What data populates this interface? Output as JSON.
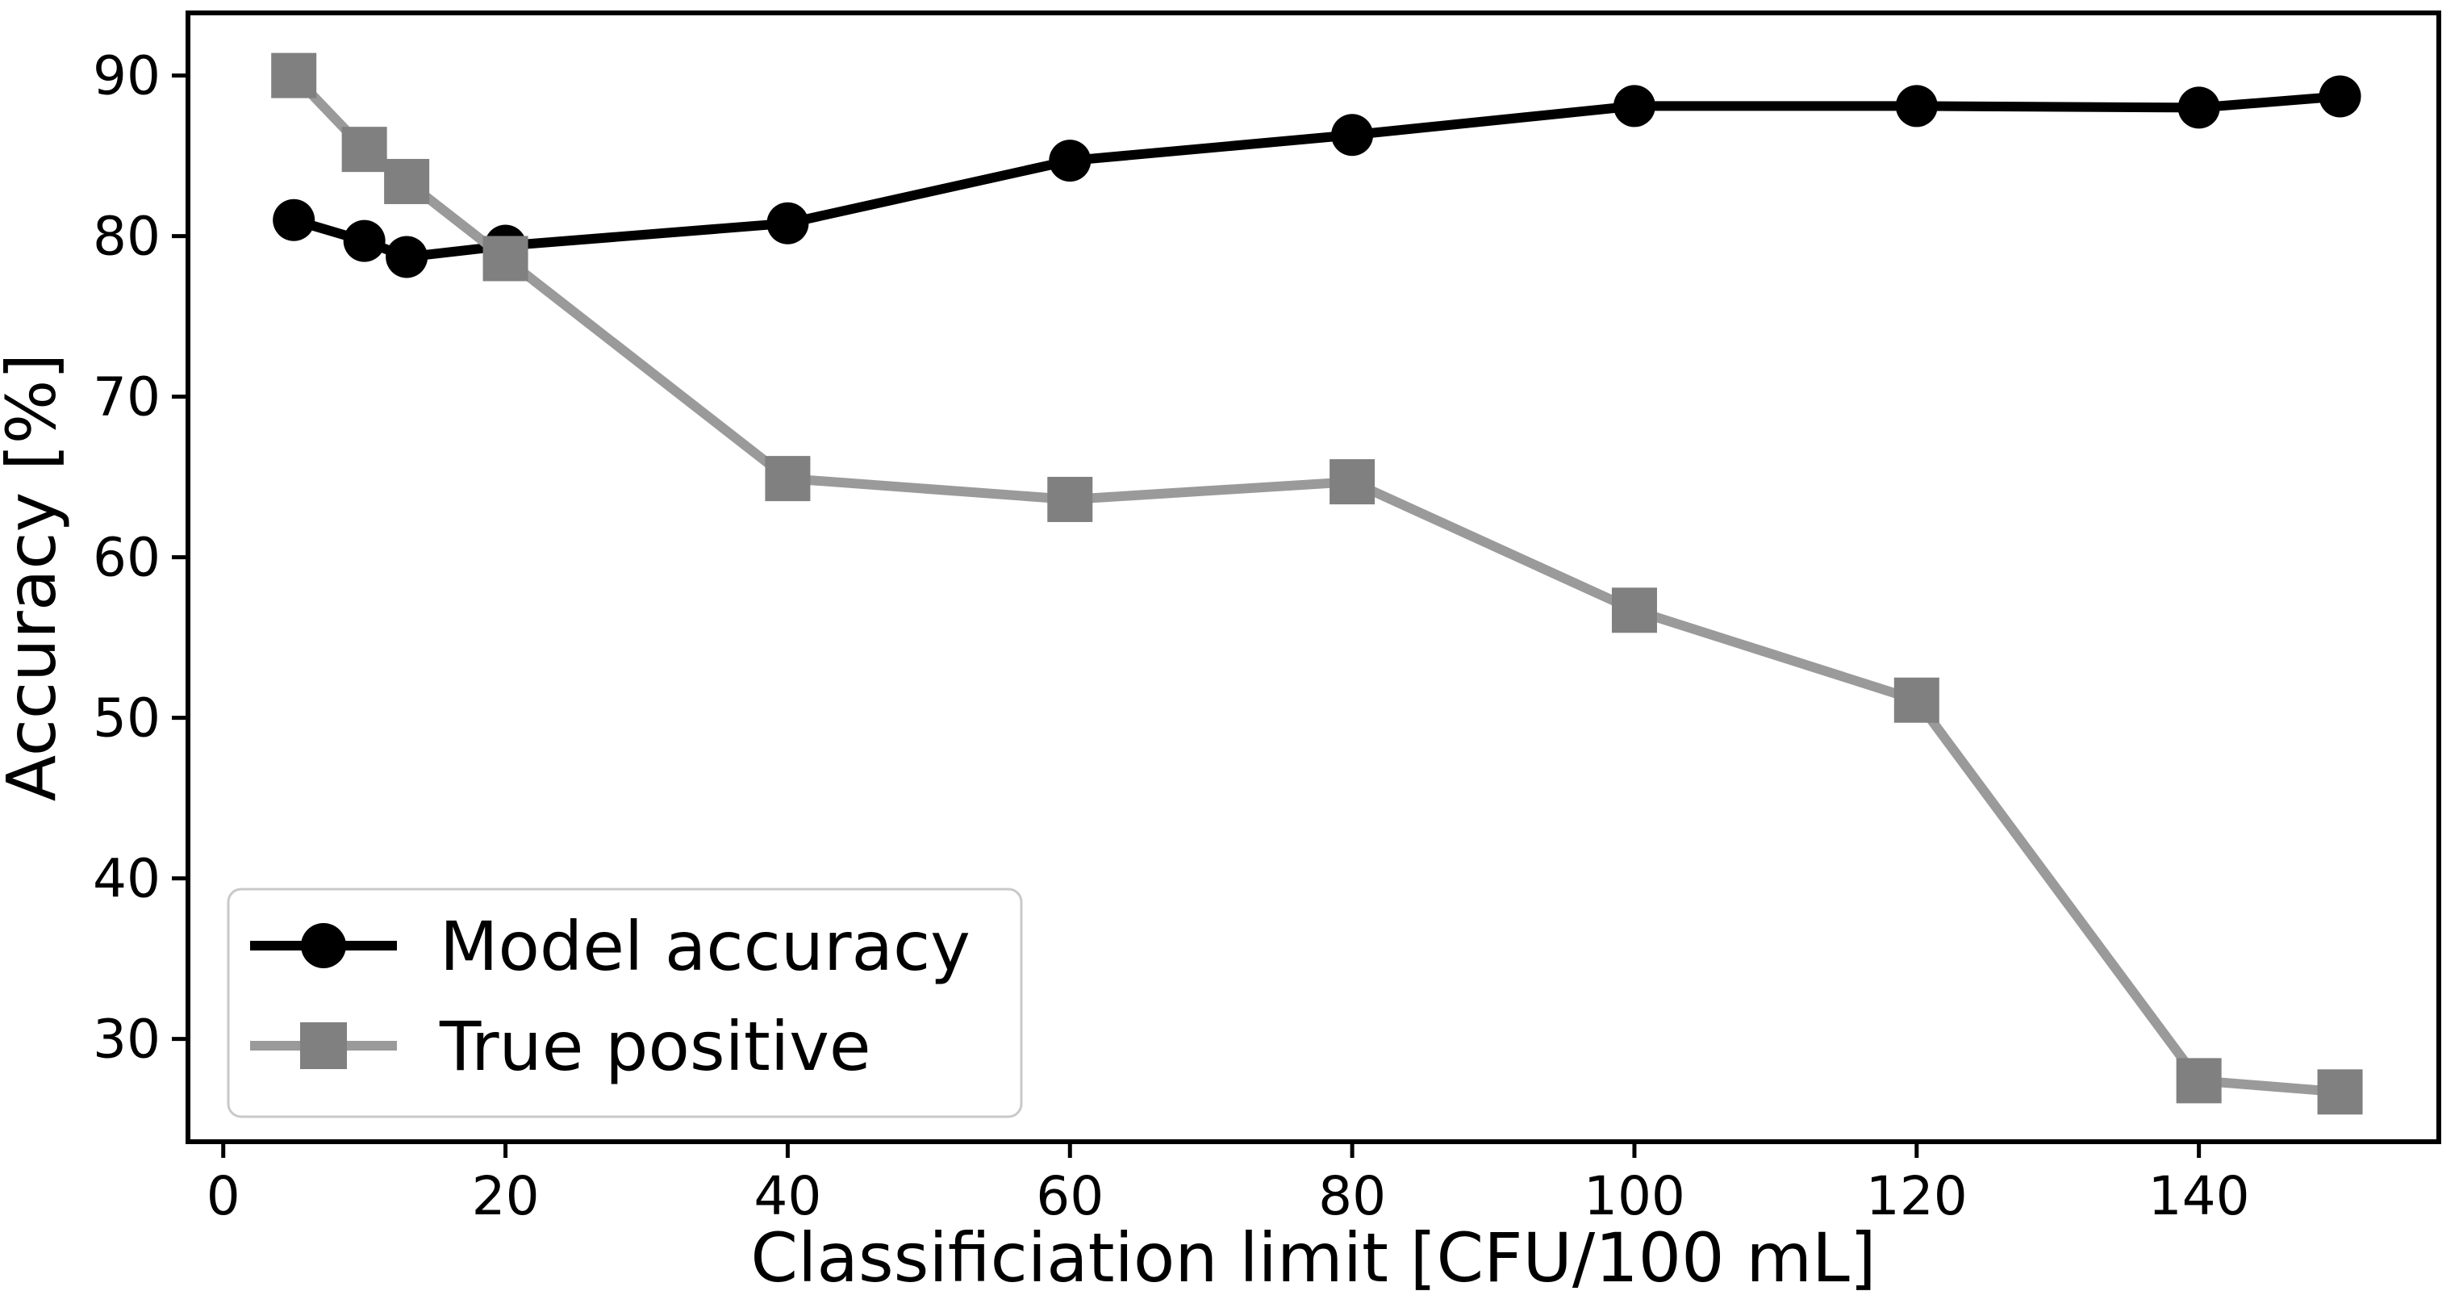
{
  "chart_data": {
    "type": "line",
    "title": "",
    "xlabel": "Classificiation limit [CFU/100 mL]",
    "ylabel": "Accuracy [%]",
    "x": [
      5,
      10,
      13,
      20,
      40,
      60,
      80,
      100,
      120,
      140,
      150
    ],
    "series": [
      {
        "name": "Model accuracy",
        "marker": "circle",
        "marker_color": "#000000",
        "line_color": "#000000",
        "values": [
          81.0,
          79.7,
          78.7,
          79.4,
          80.8,
          84.7,
          86.3,
          88.1,
          88.1,
          88.0,
          88.7
        ]
      },
      {
        "name": "True positive",
        "marker": "square",
        "marker_color": "#808080",
        "line_color": "#9a9a9a",
        "values": [
          90.0,
          85.4,
          83.4,
          78.6,
          64.9,
          63.6,
          64.7,
          56.7,
          51.1,
          27.4,
          26.7
        ]
      }
    ],
    "x_ticks": [
      0,
      20,
      40,
      60,
      80,
      100,
      120,
      140
    ],
    "y_ticks": [
      30,
      40,
      50,
      60,
      70,
      80,
      90
    ],
    "xlim": [
      -2.5,
      157
    ],
    "ylim": [
      23.6,
      93.9
    ],
    "grid": false,
    "legend_position": "lower left",
    "frame_color": "#000000",
    "legend_border_color": "#c9c9c9",
    "background_color": "#ffffff"
  }
}
